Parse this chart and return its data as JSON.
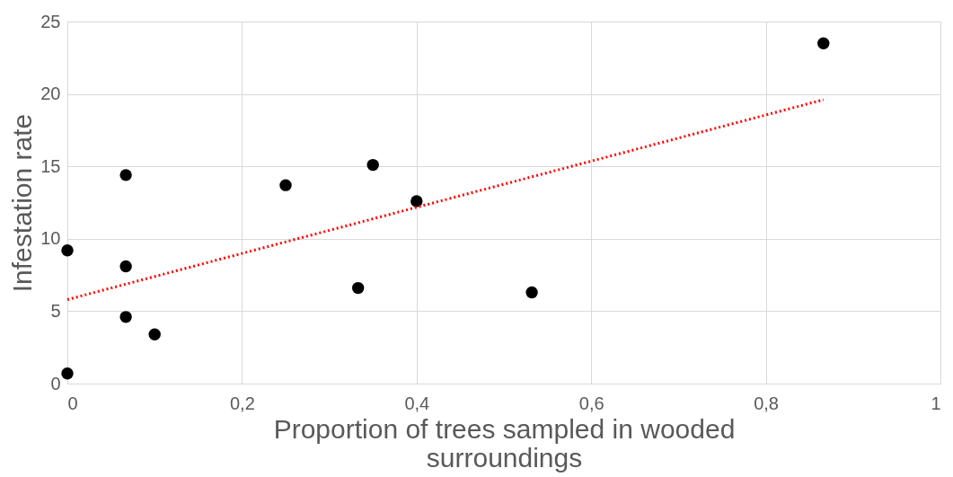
{
  "chart_data": {
    "type": "scatter",
    "xlabel": "Proportion of trees sampled in wooded surroundings",
    "ylabel": "Infestation rate",
    "xlim": [
      0,
      1
    ],
    "ylim": [
      0,
      25
    ],
    "xticks": [
      0,
      {
        "value": 0.2,
        "label": "0,2"
      },
      {
        "value": 0.4,
        "label": "0,4"
      },
      {
        "value": 0.6,
        "label": "0,6"
      },
      {
        "value": 0.8,
        "label": "0,8"
      },
      1
    ],
    "yticks": [
      0,
      5,
      10,
      15,
      20,
      25
    ],
    "grid": true,
    "series": [
      {
        "color": "#000000",
        "marker": "circle",
        "x": [
          0,
          0,
          0.067,
          0.067,
          0.067,
          0.1,
          0.25,
          0.333,
          0.35,
          0.4,
          0.532,
          0.866
        ],
        "values": [
          0.7,
          9.2,
          14.4,
          8.1,
          4.6,
          3.4,
          13.7,
          6.6,
          15.1,
          12.6,
          6.3,
          23.5
        ]
      },
      {
        "type": "line",
        "line_style": "dotted",
        "color": "#ff0000",
        "x": [
          0,
          0.866
        ],
        "values": [
          5.8,
          19.6
        ]
      }
    ]
  }
}
